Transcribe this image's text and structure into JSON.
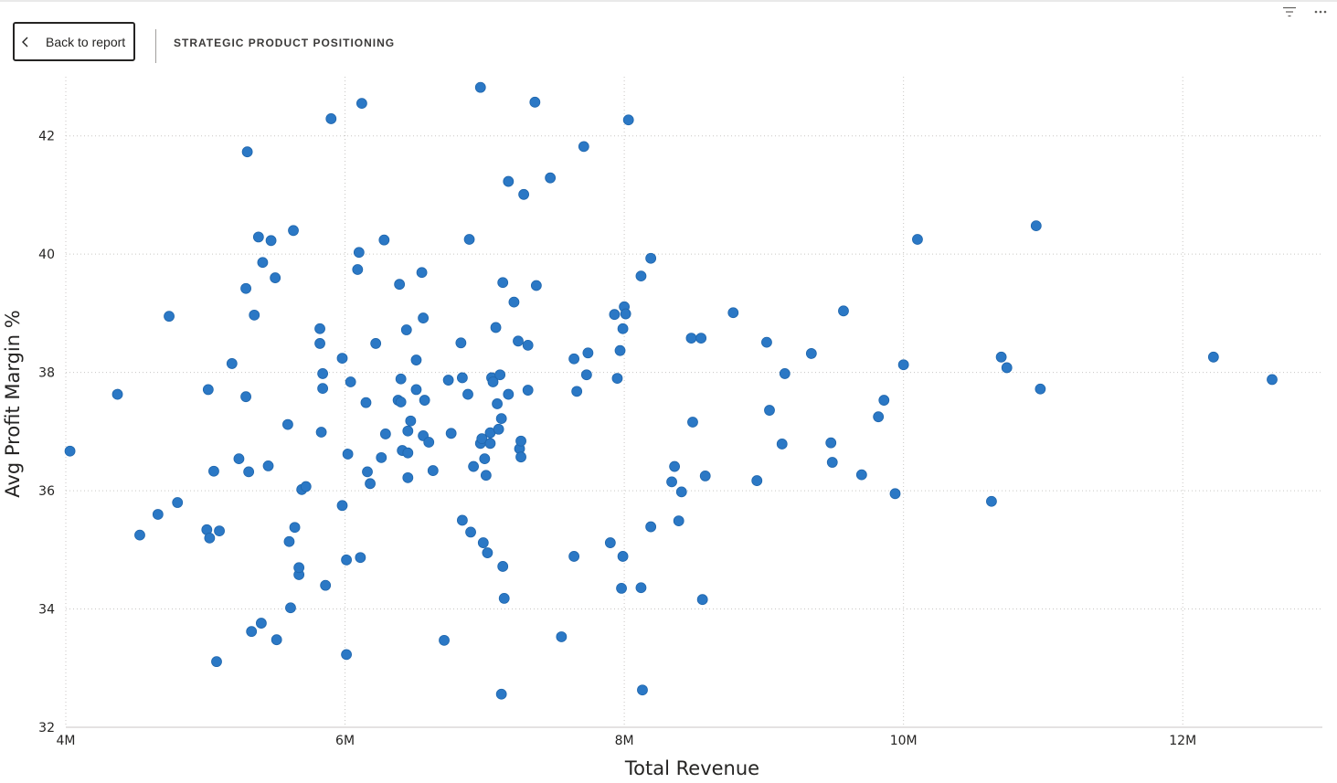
{
  "header": {
    "back_label": "Back to report",
    "page_title": "STRATEGIC PRODUCT POSITIONING",
    "filter_icon": "filter-icon",
    "more_icon": "more-options-icon"
  },
  "chart_data": {
    "type": "scatter",
    "title": "",
    "xlabel": "Total Revenue",
    "ylabel": "Avg Profit Margin %",
    "xlim": [
      4000000,
      13000000
    ],
    "ylim": [
      32,
      43
    ],
    "xticks": [
      {
        "value": 4000000,
        "label": "4M"
      },
      {
        "value": 6000000,
        "label": "6M"
      },
      {
        "value": 8000000,
        "label": "8M"
      },
      {
        "value": 10000000,
        "label": "10M"
      },
      {
        "value": 12000000,
        "label": "12M"
      }
    ],
    "yticks": [
      {
        "value": 32,
        "label": "32"
      },
      {
        "value": 34,
        "label": "34"
      },
      {
        "value": 36,
        "label": "36"
      },
      {
        "value": 38,
        "label": "38"
      },
      {
        "value": 40,
        "label": "40"
      },
      {
        "value": 42,
        "label": "42"
      }
    ],
    "grid": true,
    "legend": "none",
    "color": "#2b78c5",
    "points": [
      [
        4.03,
        36.67
      ],
      [
        4.37,
        37.63
      ],
      [
        4.53,
        35.25
      ],
      [
        4.66,
        35.6
      ],
      [
        4.74,
        38.95
      ],
      [
        4.8,
        35.8
      ],
      [
        5.01,
        35.34
      ],
      [
        5.02,
        37.71
      ],
      [
        5.03,
        35.2
      ],
      [
        5.06,
        36.33
      ],
      [
        5.08,
        33.11
      ],
      [
        5.1,
        35.32
      ],
      [
        5.19,
        38.15
      ],
      [
        5.24,
        36.54
      ],
      [
        5.29,
        37.59
      ],
      [
        5.29,
        39.42
      ],
      [
        5.3,
        41.73
      ],
      [
        5.31,
        36.32
      ],
      [
        5.33,
        33.62
      ],
      [
        5.35,
        38.97
      ],
      [
        5.38,
        40.29
      ],
      [
        5.4,
        33.76
      ],
      [
        5.41,
        39.86
      ],
      [
        5.45,
        36.42
      ],
      [
        5.47,
        40.23
      ],
      [
        5.5,
        39.6
      ],
      [
        5.51,
        33.48
      ],
      [
        5.59,
        37.12
      ],
      [
        5.6,
        35.14
      ],
      [
        5.61,
        34.02
      ],
      [
        5.63,
        40.4
      ],
      [
        5.64,
        35.38
      ],
      [
        5.67,
        34.58
      ],
      [
        5.67,
        34.7
      ],
      [
        5.69,
        36.02
      ],
      [
        5.72,
        36.07
      ],
      [
        5.82,
        38.74
      ],
      [
        5.82,
        38.49
      ],
      [
        5.83,
        36.99
      ],
      [
        5.84,
        37.73
      ],
      [
        5.84,
        37.98
      ],
      [
        5.86,
        34.4
      ],
      [
        5.9,
        42.29
      ],
      [
        5.98,
        38.24
      ],
      [
        5.98,
        35.75
      ],
      [
        6.01,
        34.83
      ],
      [
        6.01,
        33.23
      ],
      [
        6.02,
        36.62
      ],
      [
        6.04,
        37.84
      ],
      [
        6.09,
        39.74
      ],
      [
        6.1,
        40.03
      ],
      [
        6.11,
        34.87
      ],
      [
        6.12,
        42.55
      ],
      [
        6.15,
        37.49
      ],
      [
        6.16,
        36.32
      ],
      [
        6.18,
        36.12
      ],
      [
        6.22,
        38.49
      ],
      [
        6.26,
        36.56
      ],
      [
        6.28,
        40.24
      ],
      [
        6.29,
        36.96
      ],
      [
        6.38,
        37.53
      ],
      [
        6.39,
        39.49
      ],
      [
        6.4,
        37.89
      ],
      [
        6.4,
        37.5
      ],
      [
        6.41,
        36.68
      ],
      [
        6.44,
        38.72
      ],
      [
        6.45,
        36.64
      ],
      [
        6.45,
        37.01
      ],
      [
        6.45,
        36.22
      ],
      [
        6.47,
        37.18
      ],
      [
        6.51,
        38.21
      ],
      [
        6.51,
        37.71
      ],
      [
        6.55,
        39.69
      ],
      [
        6.56,
        38.92
      ],
      [
        6.56,
        36.93
      ],
      [
        6.57,
        37.53
      ],
      [
        6.6,
        36.82
      ],
      [
        6.63,
        36.34
      ],
      [
        6.71,
        33.47
      ],
      [
        6.74,
        37.87
      ],
      [
        6.76,
        36.97
      ],
      [
        6.83,
        38.5
      ],
      [
        6.84,
        37.91
      ],
      [
        6.84,
        35.5
      ],
      [
        6.88,
        37.63
      ],
      [
        6.89,
        40.25
      ],
      [
        6.9,
        35.3
      ],
      [
        6.92,
        36.41
      ],
      [
        6.97,
        42.82
      ],
      [
        6.97,
        36.8
      ],
      [
        6.98,
        36.88
      ],
      [
        6.99,
        35.12
      ],
      [
        7.0,
        36.54
      ],
      [
        7.01,
        36.26
      ],
      [
        7.02,
        34.95
      ],
      [
        7.04,
        36.98
      ],
      [
        7.04,
        36.8
      ],
      [
        7.05,
        37.91
      ],
      [
        7.06,
        37.84
      ],
      [
        7.08,
        38.76
      ],
      [
        7.09,
        37.47
      ],
      [
        7.1,
        37.04
      ],
      [
        7.11,
        37.96
      ],
      [
        7.12,
        32.56
      ],
      [
        7.12,
        37.22
      ],
      [
        7.13,
        34.72
      ],
      [
        7.13,
        39.52
      ],
      [
        7.14,
        34.18
      ],
      [
        7.17,
        41.23
      ],
      [
        7.17,
        37.63
      ],
      [
        7.21,
        39.19
      ],
      [
        7.24,
        38.53
      ],
      [
        7.25,
        36.71
      ],
      [
        7.26,
        36.84
      ],
      [
        7.26,
        36.57
      ],
      [
        7.28,
        41.01
      ],
      [
        7.31,
        37.7
      ],
      [
        7.31,
        38.46
      ],
      [
        7.36,
        42.57
      ],
      [
        7.37,
        39.47
      ],
      [
        7.47,
        41.29
      ],
      [
        7.55,
        33.53
      ],
      [
        7.64,
        34.89
      ],
      [
        7.64,
        38.23
      ],
      [
        7.66,
        37.68
      ],
      [
        7.71,
        41.82
      ],
      [
        7.73,
        37.96
      ],
      [
        7.74,
        38.33
      ],
      [
        7.9,
        35.12
      ],
      [
        7.93,
        38.98
      ],
      [
        7.95,
        37.9
      ],
      [
        7.97,
        38.37
      ],
      [
        7.98,
        34.35
      ],
      [
        7.99,
        34.89
      ],
      [
        7.99,
        38.74
      ],
      [
        8.0,
        39.11
      ],
      [
        8.01,
        38.99
      ],
      [
        8.03,
        42.27
      ],
      [
        8.12,
        34.36
      ],
      [
        8.12,
        39.63
      ],
      [
        8.13,
        32.63
      ],
      [
        8.19,
        35.39
      ],
      [
        8.19,
        39.93
      ],
      [
        8.34,
        36.15
      ],
      [
        8.36,
        36.41
      ],
      [
        8.39,
        35.49
      ],
      [
        8.41,
        35.98
      ],
      [
        8.48,
        38.58
      ],
      [
        8.49,
        37.16
      ],
      [
        8.55,
        38.58
      ],
      [
        8.56,
        34.16
      ],
      [
        8.58,
        36.25
      ],
      [
        8.78,
        39.01
      ],
      [
        8.95,
        36.17
      ],
      [
        9.02,
        38.51
      ],
      [
        9.04,
        37.36
      ],
      [
        9.13,
        36.79
      ],
      [
        9.15,
        37.98
      ],
      [
        9.34,
        38.32
      ],
      [
        9.48,
        36.81
      ],
      [
        9.49,
        36.48
      ],
      [
        9.57,
        39.04
      ],
      [
        9.7,
        36.27
      ],
      [
        9.82,
        37.25
      ],
      [
        9.86,
        37.53
      ],
      [
        9.94,
        35.95
      ],
      [
        10.0,
        38.13
      ],
      [
        10.1,
        40.25
      ],
      [
        10.63,
        35.82
      ],
      [
        10.7,
        38.26
      ],
      [
        10.74,
        38.08
      ],
      [
        10.95,
        40.48
      ],
      [
        10.98,
        37.72
      ],
      [
        12.22,
        38.26
      ],
      [
        12.64,
        37.88
      ]
    ]
  }
}
